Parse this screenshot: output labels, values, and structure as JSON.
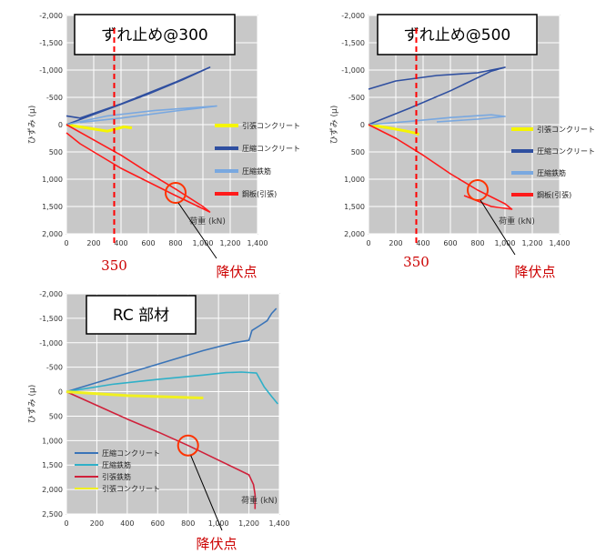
{
  "chart_data": [
    {
      "type": "line",
      "panel_label": "ずれ止め@300",
      "xlabel": "荷重 (kN)",
      "ylabel": "ひずみ (μ)",
      "xlim": [
        0,
        1400
      ],
      "ylim": [
        -2000,
        2000
      ],
      "y_inverted": true,
      "x_ticks": [
        "0",
        "200",
        "400",
        "600",
        "800",
        "1,000",
        "1,200",
        "1,400"
      ],
      "y_ticks": [
        "-2,000",
        "-1,500",
        "-1,000",
        "-500",
        "0",
        "500",
        "1,000",
        "1,500",
        "2,000"
      ],
      "grid": true,
      "legend_position": "right",
      "series": [
        {
          "name": "引張コンクリート",
          "color": "#f5f500",
          "x": [
            0,
            150,
            300,
            420,
            480
          ],
          "y": [
            0,
            60,
            120,
            40,
            60
          ]
        },
        {
          "name": "圧縮コンクリート",
          "color": "#2f4fa0",
          "x": [
            0,
            300,
            600,
            850,
            1050,
            800,
            400,
            100,
            0
          ],
          "y": [
            0,
            -280,
            -560,
            -820,
            -1050,
            -780,
            -380,
            -120,
            -160
          ]
        },
        {
          "name": "圧縮鉄筋",
          "color": "#79a8e0",
          "x": [
            0,
            300,
            650,
            1100,
            800,
            400,
            100
          ],
          "y": [
            0,
            -160,
            -260,
            -340,
            -250,
            -120,
            -40
          ]
        },
        {
          "name": "鋼板(引張)",
          "color": "#ff1a1a",
          "x": [
            0,
            200,
            400,
            600,
            800,
            1000,
            1050,
            800,
            400,
            100,
            0
          ],
          "y": [
            0,
            280,
            560,
            880,
            1180,
            1500,
            1600,
            1300,
            800,
            350,
            150
          ]
        }
      ],
      "annotations": [
        {
          "type": "vline",
          "x": 350,
          "label": "350",
          "color": "#ff0000"
        },
        {
          "type": "circle",
          "x": 800,
          "y": 1250,
          "label": "降伏点",
          "color": "#ff3300"
        }
      ]
    },
    {
      "type": "line",
      "panel_label": "ずれ止め@500",
      "xlabel": "荷重 (kN)",
      "ylabel": "ひずみ (μ)",
      "xlim": [
        0,
        1400
      ],
      "ylim": [
        -2000,
        2000
      ],
      "y_inverted": true,
      "x_ticks": [
        "0",
        "200",
        "400",
        "600",
        "800",
        "1,000",
        "1,200",
        "1,400"
      ],
      "y_ticks": [
        "-2,000",
        "-1,500",
        "-1,000",
        "-500",
        "0",
        "500",
        "1,000",
        "1,500",
        "2,000"
      ],
      "grid": true,
      "legend_position": "right",
      "series": [
        {
          "name": "引張コンクリート",
          "color": "#f5f500",
          "x": [
            0,
            150,
            280,
            350,
            370
          ],
          "y": [
            0,
            60,
            120,
            160,
            180
          ]
        },
        {
          "name": "圧縮コンクリート",
          "color": "#2f4fa0",
          "x": [
            0,
            300,
            600,
            900,
            1000,
            800,
            500,
            200,
            0
          ],
          "y": [
            0,
            -300,
            -620,
            -980,
            -1050,
            -950,
            -900,
            -800,
            -650
          ]
        },
        {
          "name": "圧縮鉄筋",
          "color": "#79a8e0",
          "x": [
            0,
            300,
            600,
            900,
            1000,
            800,
            500
          ],
          "y": [
            0,
            -60,
            -130,
            -180,
            -150,
            -100,
            -50
          ]
        },
        {
          "name": "鋼板(引張)",
          "color": "#ff1a1a",
          "x": [
            0,
            200,
            400,
            600,
            800,
            1000,
            1050,
            900,
            700
          ],
          "y": [
            0,
            250,
            560,
            900,
            1200,
            1450,
            1550,
            1500,
            1300
          ]
        }
      ],
      "annotations": [
        {
          "type": "vline",
          "x": 350,
          "label": "350",
          "color": "#ff0000"
        },
        {
          "type": "circle",
          "x": 800,
          "y": 1200,
          "label": "降伏点",
          "color": "#ff3300"
        }
      ]
    },
    {
      "type": "line",
      "panel_label": "RC 部材",
      "xlabel": "荷重 (kN)",
      "ylabel": "ひずみ (μ)",
      "xlim": [
        0,
        1400
      ],
      "ylim": [
        -2000,
        2500
      ],
      "y_inverted": true,
      "x_ticks": [
        "0",
        "200",
        "400",
        "600",
        "800",
        "1,000",
        "1,200",
        "1,400"
      ],
      "y_ticks": [
        "-2,000",
        "-1,500",
        "-1,000",
        "-500",
        "0",
        "500",
        "1,000",
        "1,500",
        "2,000",
        "2,500"
      ],
      "grid": true,
      "legend_position": "bottom-left",
      "series": [
        {
          "name": "圧縮コンクリート",
          "color": "#3a74b8",
          "x": [
            0,
            300,
            600,
            900,
            1100,
            1200,
            1220,
            1270,
            1320,
            1350,
            1380
          ],
          "y": [
            0,
            -280,
            -560,
            -840,
            -1000,
            -1050,
            -1250,
            -1350,
            -1450,
            -1600,
            -1700
          ]
        },
        {
          "name": "圧縮鉄筋",
          "color": "#2fb0c8",
          "x": [
            0,
            300,
            600,
            900,
            1050,
            1150,
            1250,
            1300,
            1350,
            1390
          ],
          "y": [
            0,
            -150,
            -250,
            -340,
            -390,
            -400,
            -380,
            -100,
            100,
            250
          ]
        },
        {
          "name": "引張鉄筋",
          "color": "#d0203a",
          "x": [
            0,
            200,
            400,
            600,
            800,
            1000,
            1200,
            1230,
            1240,
            1240
          ],
          "y": [
            0,
            280,
            560,
            820,
            1100,
            1400,
            1700,
            1900,
            2100,
            2400
          ]
        },
        {
          "name": "引張コンクリート",
          "color": "#f0f020",
          "x": [
            0,
            200,
            400,
            600,
            800,
            900
          ],
          "y": [
            0,
            40,
            80,
            100,
            120,
            130
          ]
        }
      ],
      "annotations": [
        {
          "type": "circle",
          "x": 800,
          "y": 1100,
          "label": "降伏点",
          "color": "#ff3300"
        }
      ]
    }
  ]
}
